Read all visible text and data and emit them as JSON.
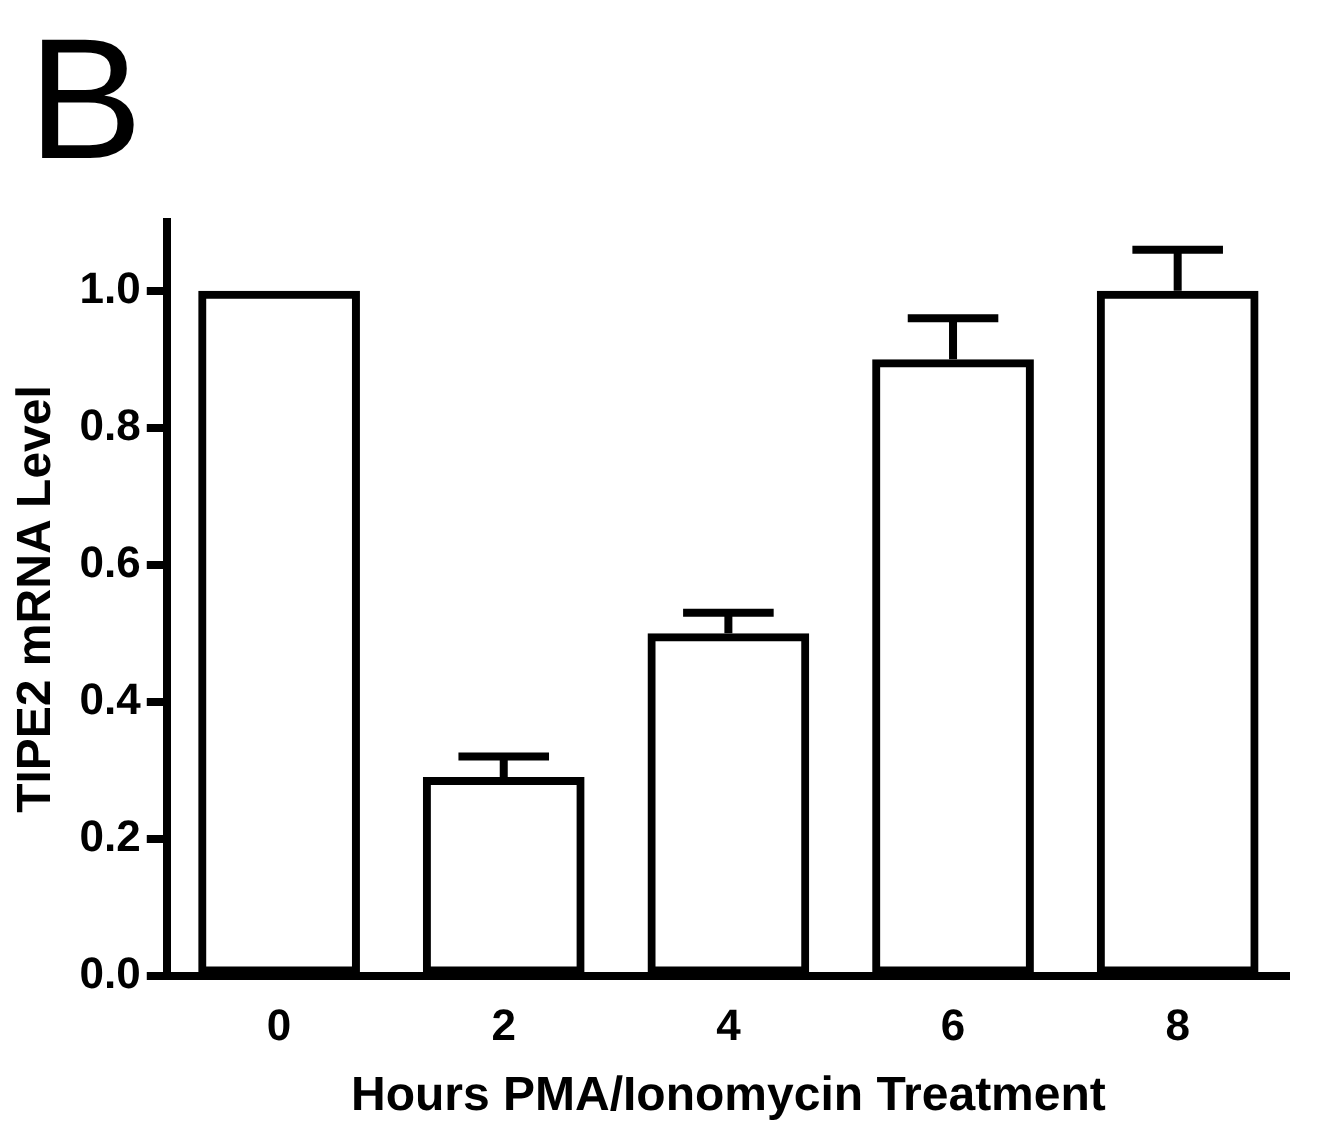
{
  "chart_data": {
    "type": "bar",
    "title": "B",
    "xlabel": "Hours PMA/Ionomycin Treatment",
    "ylabel": "TIPE2 mRNA Level",
    "categories": [
      "0",
      "2",
      "4",
      "6",
      "8"
    ],
    "values": [
      1.0,
      0.29,
      0.5,
      0.9,
      1.0
    ],
    "errors": [
      null,
      [
        0.29,
        0.32
      ],
      [
        0.5,
        0.53
      ],
      [
        0.9,
        0.96
      ],
      [
        1.0,
        1.06
      ]
    ],
    "color": "#000000",
    "ylim": [
      0,
      1.1
    ],
    "yticks": [
      {
        "value": 0,
        "label": "0.0"
      },
      {
        "value": 0.2,
        "label": "0.2"
      },
      {
        "value": 0.4,
        "label": "0.4"
      },
      {
        "value": 0.6,
        "label": "0.6"
      },
      {
        "value": 0.8,
        "label": "0.8"
      },
      {
        "value": 1.0,
        "label": "1.0"
      }
    ],
    "grid": false,
    "legend": false
  }
}
